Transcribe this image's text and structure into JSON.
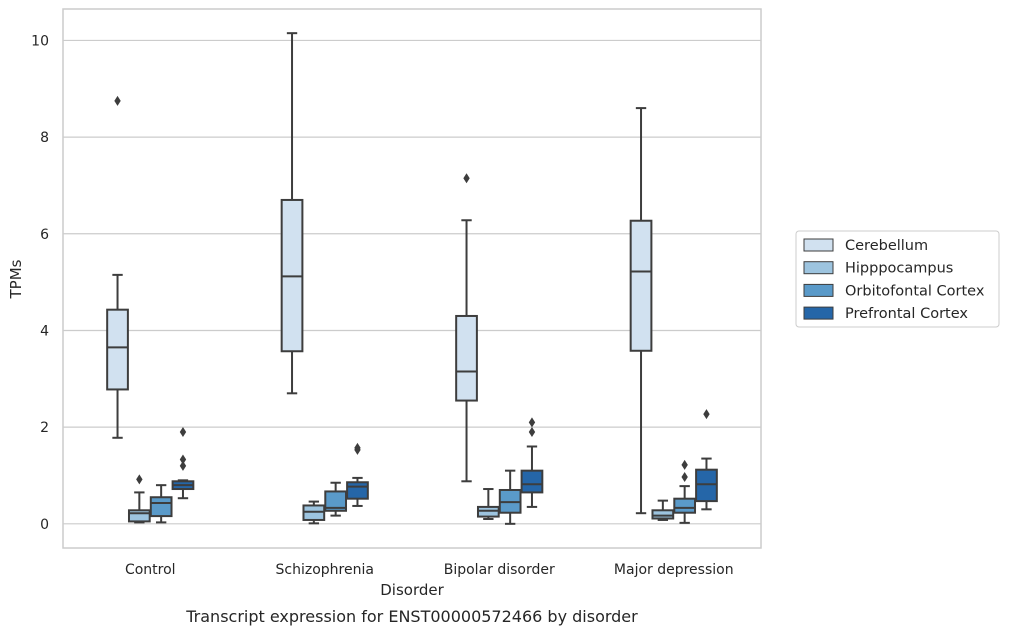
{
  "caption": "Transcript expression for ENST00000572466 by disorder",
  "chart_data": {
    "type": "box",
    "xlabel": "Disorder",
    "ylabel": "TPMs",
    "ylim": [
      -0.5,
      10.65
    ],
    "yticks": [
      0,
      2,
      4,
      6,
      8,
      10
    ],
    "grid": "horizontal",
    "legend_position": "right",
    "categories": [
      "Control",
      "Schizophrenia",
      "Bipolar disorder",
      "Major depression"
    ],
    "series": [
      {
        "name": "Cerebellum",
        "color": "#d1e1f0",
        "boxes": [
          {
            "whislo": 1.78,
            "q1": 2.78,
            "med": 3.65,
            "q3": 4.43,
            "whishi": 5.15,
            "fliers": [
              8.75
            ]
          },
          {
            "whislo": 2.7,
            "q1": 3.57,
            "med": 5.12,
            "q3": 6.7,
            "whishi": 10.15,
            "fliers": []
          },
          {
            "whislo": 0.88,
            "q1": 2.55,
            "med": 3.15,
            "q3": 4.3,
            "whishi": 6.28,
            "fliers": [
              7.15
            ]
          },
          {
            "whislo": 0.22,
            "q1": 3.58,
            "med": 5.22,
            "q3": 6.27,
            "whishi": 8.6,
            "fliers": []
          }
        ]
      },
      {
        "name": "Hipppocampus",
        "color": "#9dc4df",
        "boxes": [
          {
            "whislo": 0.03,
            "q1": 0.05,
            "med": 0.22,
            "q3": 0.28,
            "whishi": 0.65,
            "fliers": [
              0.92
            ]
          },
          {
            "whislo": 0.01,
            "q1": 0.08,
            "med": 0.25,
            "q3": 0.38,
            "whishi": 0.46,
            "fliers": []
          },
          {
            "whislo": 0.1,
            "q1": 0.15,
            "med": 0.27,
            "q3": 0.35,
            "whishi": 0.72,
            "fliers": []
          },
          {
            "whislo": 0.08,
            "q1": 0.11,
            "med": 0.17,
            "q3": 0.28,
            "whishi": 0.48,
            "fliers": []
          }
        ]
      },
      {
        "name": "Orbitofontal Cortex",
        "color": "#5a9ac9",
        "boxes": [
          {
            "whislo": 0.03,
            "q1": 0.16,
            "med": 0.43,
            "q3": 0.55,
            "whishi": 0.8,
            "fliers": []
          },
          {
            "whislo": 0.17,
            "q1": 0.27,
            "med": 0.33,
            "q3": 0.67,
            "whishi": 0.85,
            "fliers": []
          },
          {
            "whislo": 0.0,
            "q1": 0.23,
            "med": 0.45,
            "q3": 0.7,
            "whishi": 1.1,
            "fliers": []
          },
          {
            "whislo": 0.02,
            "q1": 0.23,
            "med": 0.33,
            "q3": 0.52,
            "whishi": 0.78,
            "fliers": [
              0.97,
              1.22
            ]
          }
        ]
      },
      {
        "name": "Prefrontal Cortex",
        "color": "#2566a8",
        "boxes": [
          {
            "whislo": 0.53,
            "q1": 0.72,
            "med": 0.8,
            "q3": 0.88,
            "whishi": 0.9,
            "fliers": [
              1.2,
              1.33,
              1.9
            ]
          },
          {
            "whislo": 0.37,
            "q1": 0.52,
            "med": 0.77,
            "q3": 0.86,
            "whishi": 0.95,
            "fliers": [
              1.53,
              1.57
            ]
          },
          {
            "whislo": 0.35,
            "q1": 0.65,
            "med": 0.82,
            "q3": 1.1,
            "whishi": 1.6,
            "fliers": [
              1.9,
              2.1
            ]
          },
          {
            "whislo": 0.3,
            "q1": 0.47,
            "med": 0.82,
            "q3": 1.12,
            "whishi": 1.35,
            "fliers": [
              2.27
            ]
          }
        ]
      }
    ]
  }
}
